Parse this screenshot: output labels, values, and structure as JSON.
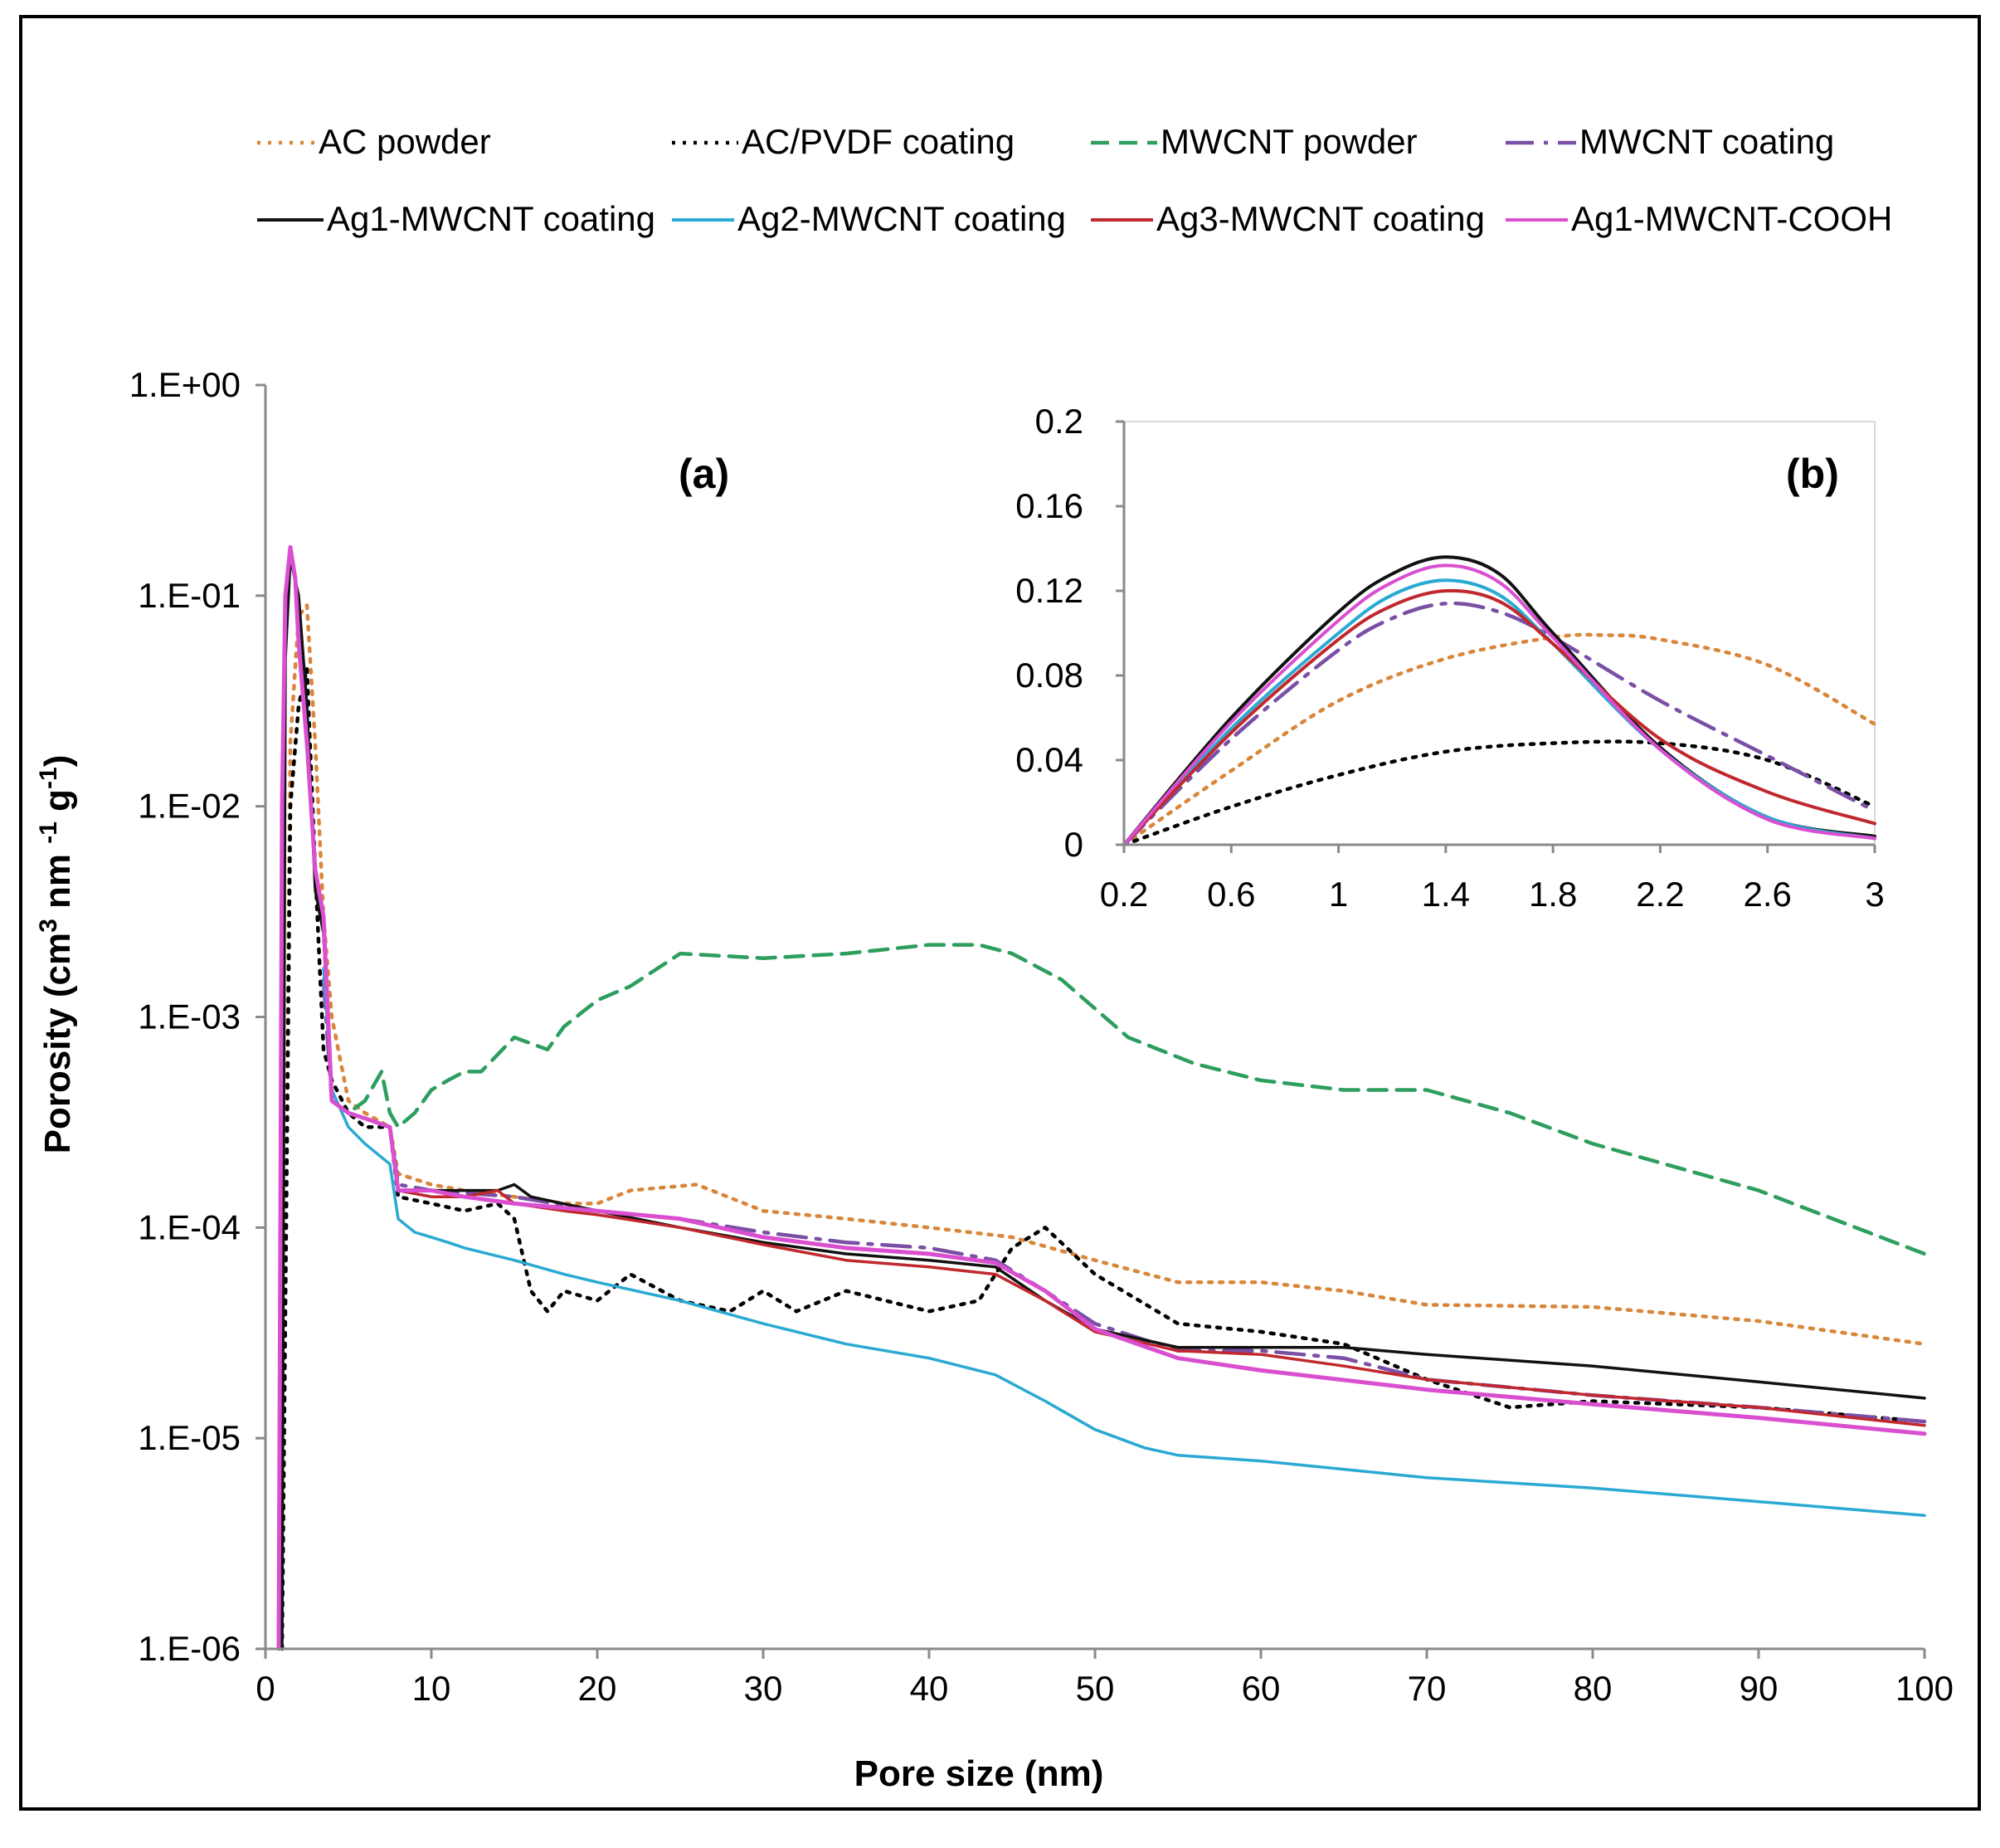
{
  "chart_data": [
    {
      "panel": "(a)",
      "type": "line",
      "xlabel": "Pore size  (nm)",
      "ylabel": "Porosity (cm³ nm ⁻¹ g⁻¹)",
      "ylabel_parts": {
        "a": "Porosity (cm",
        "b": "3",
        "c": " nm ",
        "d": "-1",
        "e": " g",
        "f": "-1",
        "g": ")"
      },
      "x_ticks": [
        "0",
        "10",
        "20",
        "30",
        "40",
        "50",
        "60",
        "70",
        "80",
        "90",
        "100"
      ],
      "y_ticks": [
        "1.E-06",
        "1.E-05",
        "1.E-04",
        "1.E-03",
        "1.E-02",
        "1.E-01",
        "1.E+00"
      ],
      "xlim": [
        0,
        100
      ],
      "yscale": "log",
      "ylim": [
        1e-06,
        1
      ],
      "grid": false,
      "legend_position": "top",
      "series": [
        {
          "name": "AC powder",
          "color": "#d9863a",
          "dash": "dotted",
          "x": [
            1,
            1.5,
            2,
            2.5,
            3,
            3.5,
            4,
            5,
            6,
            7.5,
            8,
            10,
            12,
            15,
            18,
            20,
            22,
            26,
            30,
            35,
            40,
            45,
            50,
            55,
            60,
            65,
            70,
            80,
            90,
            100
          ],
          "y": [
            1e-06,
            0.02,
            0.08,
            0.09,
            0.02,
            0.003,
            0.001,
            0.0004,
            0.00035,
            0.0003,
            0.00018,
            0.00016,
            0.00015,
            0.00014,
            0.00013,
            0.00013,
            0.00015,
            0.00016,
            0.00012,
            0.00011,
            0.0001,
            9e-05,
            7e-05,
            5.5e-05,
            5.5e-05,
            5e-05,
            4.3e-05,
            4.2e-05,
            3.6e-05,
            2.8e-05
          ]
        },
        {
          "name": "AC/PVDF coating",
          "color": "#000000",
          "dash": "dotted",
          "x": [
            1,
            1.5,
            2,
            2.5,
            3,
            3.5,
            4,
            5,
            6,
            7.5,
            8,
            10,
            12,
            14,
            15,
            16,
            17,
            18,
            20,
            22,
            25,
            28,
            30,
            32,
            35,
            40,
            43,
            45,
            47,
            50,
            55,
            60,
            65,
            70,
            75,
            80,
            90,
            100
          ],
          "y": [
            1e-06,
            0.01,
            0.03,
            0.045,
            0.005,
            0.0007,
            0.0005,
            0.00035,
            0.0003,
            0.0003,
            0.00014,
            0.00013,
            0.00012,
            0.00013,
            0.00011,
            5e-05,
            4e-05,
            5e-05,
            4.5e-05,
            6e-05,
            4.5e-05,
            4e-05,
            5e-05,
            4e-05,
            5e-05,
            4e-05,
            4.5e-05,
            8e-05,
            0.0001,
            6e-05,
            3.5e-05,
            3.2e-05,
            2.8e-05,
            1.9e-05,
            1.4e-05,
            1.5e-05,
            1.4e-05,
            1.2e-05
          ]
        },
        {
          "name": "MWCNT powder",
          "color": "#2e9e5f",
          "dash": "dashed",
          "x": [
            4,
            5,
            6,
            7,
            7.5,
            8,
            9,
            10,
            11,
            12,
            13,
            15,
            17,
            18,
            20,
            22,
            25,
            30,
            35,
            40,
            43,
            45,
            48,
            52,
            56,
            60,
            65,
            70,
            75,
            80,
            90,
            100
          ],
          "y": [
            0.0004,
            0.00035,
            0.0004,
            0.00055,
            0.00035,
            0.0003,
            0.00035,
            0.00045,
            0.0005,
            0.00055,
            0.00055,
            0.0008,
            0.0007,
            0.0009,
            0.0012,
            0.0014,
            0.002,
            0.0019,
            0.002,
            0.0022,
            0.0022,
            0.002,
            0.0015,
            0.0008,
            0.0006,
            0.0005,
            0.00045,
            0.00045,
            0.00035,
            0.00025,
            0.00015,
            7.5e-05
          ]
        },
        {
          "name": "MWCNT coating",
          "color": "#7a4fa5",
          "dash": "dashdot",
          "x": [
            3.5,
            4,
            5,
            6,
            7.5,
            8,
            10,
            15,
            20,
            25,
            30,
            35,
            40,
            44,
            47,
            50,
            55,
            60,
            65,
            70,
            80,
            90,
            100
          ],
          "y": [
            0.0015,
            0.0004,
            0.00035,
            0.00033,
            0.0003,
            0.00016,
            0.00015,
            0.00014,
            0.00012,
            0.00011,
            9.5e-05,
            8.5e-05,
            8e-05,
            7e-05,
            5e-05,
            3.5e-05,
            2.6e-05,
            2.6e-05,
            2.4e-05,
            1.9e-05,
            1.6e-05,
            1.4e-05,
            1.2e-05
          ]
        },
        {
          "name": "Ag1-MWCNT coating",
          "color": "#111111",
          "dash": "solid",
          "x": [
            1,
            1.2,
            1.5,
            2,
            2.5,
            3,
            3.5,
            4,
            5,
            6,
            7.5,
            8,
            10,
            12,
            14,
            15,
            16,
            20,
            25,
            30,
            35,
            40,
            44,
            47,
            50,
            55,
            60,
            65,
            70,
            80,
            90,
            100
          ],
          "y": [
            1e-06,
            0.05,
            0.15,
            0.1,
            0.03,
            0.004,
            0.0025,
            0.0004,
            0.00035,
            0.00033,
            0.0003,
            0.00015,
            0.00015,
            0.00015,
            0.00015,
            0.00016,
            0.00014,
            0.00012,
            0.0001,
            8.5e-05,
            7.5e-05,
            7e-05,
            6.5e-05,
            4.5e-05,
            3.3e-05,
            2.7e-05,
            2.7e-05,
            2.7e-05,
            2.5e-05,
            2.2e-05,
            1.85e-05,
            1.55e-05
          ]
        },
        {
          "name": "Ag2-MWCNT coating",
          "color": "#2aa9d2",
          "dash": "solid",
          "x": [
            3.5,
            4,
            5,
            6,
            7.5,
            8,
            9,
            10,
            11,
            12,
            15,
            18,
            20,
            25,
            30,
            35,
            40,
            44,
            47,
            50,
            53,
            55,
            60,
            70,
            80,
            90,
            100
          ],
          "y": [
            0.0017,
            0.00045,
            0.0003,
            0.00025,
            0.0002,
            0.00011,
            9.5e-05,
            9e-05,
            8.5e-05,
            8e-05,
            7e-05,
            6e-05,
            5.5e-05,
            4.5e-05,
            3.5e-05,
            2.8e-05,
            2.4e-05,
            2e-05,
            1.5e-05,
            1.1e-05,
            9e-06,
            8.3e-06,
            7.8e-06,
            6.5e-06,
            5.8e-06,
            5e-06,
            4.3e-06
          ]
        },
        {
          "name": "Ag3-MWCNT coating",
          "color": "#c0282d",
          "dash": "solid",
          "x": [
            3.5,
            4,
            5,
            6,
            7.5,
            8,
            10,
            12,
            14,
            15,
            18,
            20,
            25,
            30,
            35,
            40,
            44,
            47,
            50,
            55,
            60,
            65,
            70,
            80,
            90,
            100
          ],
          "y": [
            0.0025,
            0.0004,
            0.00035,
            0.00033,
            0.0003,
            0.00015,
            0.00014,
            0.00014,
            0.00015,
            0.00013,
            0.00012,
            0.000115,
            0.0001,
            8.3e-05,
            7e-05,
            6.5e-05,
            6e-05,
            4.5e-05,
            3.2e-05,
            2.6e-05,
            2.5e-05,
            2.2e-05,
            1.9e-05,
            1.6e-05,
            1.4e-05,
            1.15e-05
          ]
        },
        {
          "name": "Ag1-MWCNT-COOH",
          "color": "#d94fcf",
          "dash": "solid",
          "x": [
            0.8,
            1,
            1.2,
            1.5,
            1.8,
            2,
            2.5,
            3,
            3.5,
            4,
            5,
            6,
            7.5,
            8,
            10,
            12,
            15,
            20,
            25,
            30,
            35,
            40,
            44,
            47,
            50,
            55,
            60,
            70,
            80,
            90,
            100
          ],
          "y": [
            1e-06,
            0.01,
            0.1,
            0.17,
            0.12,
            0.06,
            0.02,
            0.005,
            0.003,
            0.0004,
            0.00035,
            0.00033,
            0.0003,
            0.00015,
            0.00015,
            0.00014,
            0.00013,
            0.00012,
            0.00011,
            9e-05,
            8e-05,
            7.5e-05,
            6.8e-05,
            5e-05,
            3.3e-05,
            2.4e-05,
            2.1e-05,
            1.7e-05,
            1.45e-05,
            1.25e-05,
            1.05e-05
          ]
        }
      ]
    },
    {
      "panel": "(b)",
      "type": "line",
      "role": "inset",
      "x_ticks": [
        "0.2",
        "0.6",
        "1",
        "1.4",
        "1.8",
        "2.2",
        "2.6",
        "3"
      ],
      "y_ticks": [
        "0",
        "0.04",
        "0.08",
        "0.12",
        "0.16",
        "0.2"
      ],
      "xlim": [
        0.2,
        3
      ],
      "ylim": [
        0,
        0.2
      ],
      "grid": false,
      "series": [
        {
          "name": "AC powder",
          "color": "#d9863a",
          "dash": "dotted",
          "x": [
            0.2,
            0.6,
            1,
            1.4,
            1.8,
            2,
            2.2,
            2.6,
            3
          ],
          "y": [
            0,
            0.035,
            0.068,
            0.088,
            0.098,
            0.099,
            0.097,
            0.085,
            0.057
          ]
        },
        {
          "name": "AC/PVDF coating",
          "color": "#000000",
          "dash": "dotted",
          "x": [
            0.2,
            0.6,
            1,
            1.4,
            1.8,
            2.2,
            2.6,
            3
          ],
          "y": [
            0,
            0.018,
            0.033,
            0.044,
            0.048,
            0.048,
            0.04,
            0.018
          ]
        },
        {
          "name": "MWCNT coating",
          "color": "#7a4fa5",
          "dash": "dashdot",
          "x": [
            0.2,
            0.6,
            1,
            1.2,
            1.4,
            1.6,
            1.8,
            2.2,
            2.6,
            3
          ],
          "y": [
            0,
            0.05,
            0.092,
            0.107,
            0.114,
            0.11,
            0.098,
            0.068,
            0.042,
            0.016
          ]
        },
        {
          "name": "Ag1-MWCNT coating",
          "color": "#111111",
          "dash": "solid",
          "x": [
            0.2,
            0.6,
            1,
            1.2,
            1.4,
            1.6,
            1.8,
            2.2,
            2.6,
            3
          ],
          "y": [
            0,
            0.06,
            0.11,
            0.128,
            0.136,
            0.128,
            0.1,
            0.046,
            0.013,
            0.004
          ]
        },
        {
          "name": "Ag2-MWCNT coating",
          "color": "#2aa9d2",
          "dash": "solid",
          "x": [
            0.2,
            0.6,
            1,
            1.2,
            1.4,
            1.6,
            1.8,
            2.2,
            2.6,
            3
          ],
          "y": [
            0,
            0.055,
            0.1,
            0.118,
            0.125,
            0.118,
            0.095,
            0.045,
            0.013,
            0.003
          ]
        },
        {
          "name": "Ag3-MWCNT coating",
          "color": "#c0282d",
          "dash": "solid",
          "x": [
            0.2,
            0.6,
            1,
            1.2,
            1.4,
            1.6,
            1.8,
            2.2,
            2.6,
            3
          ],
          "y": [
            0,
            0.053,
            0.097,
            0.113,
            0.12,
            0.115,
            0.095,
            0.05,
            0.025,
            0.01
          ]
        },
        {
          "name": "Ag1-MWCNT-COOH",
          "color": "#d94fcf",
          "dash": "solid",
          "x": [
            0.2,
            0.6,
            1,
            1.2,
            1.4,
            1.6,
            1.8,
            2.2,
            2.6,
            3
          ],
          "y": [
            0,
            0.058,
            0.106,
            0.124,
            0.132,
            0.124,
            0.098,
            0.045,
            0.012,
            0.003
          ]
        }
      ]
    }
  ]
}
